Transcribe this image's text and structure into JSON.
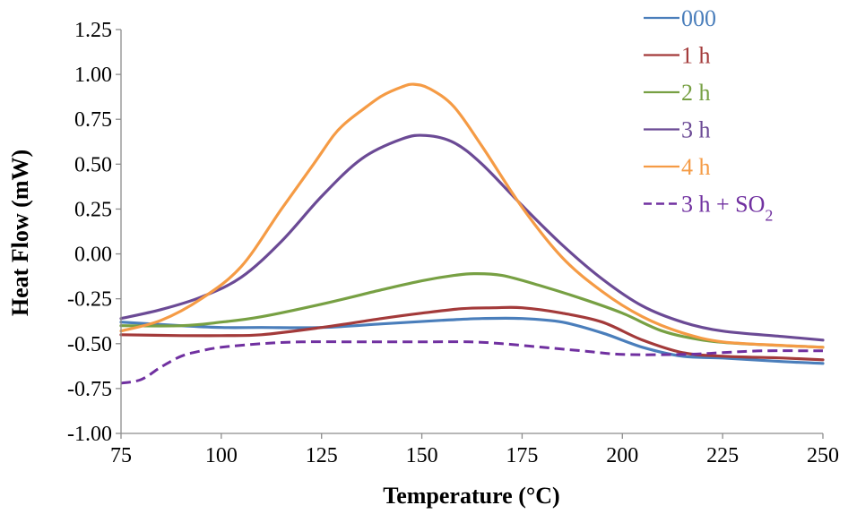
{
  "chart_data": {
    "type": "line",
    "title": "",
    "xlabel": "Temperature (°C)",
    "ylabel": "Heat Flow (mW)",
    "xlim": [
      75,
      250
    ],
    "ylim": [
      -1.0,
      1.25
    ],
    "x_ticks": [
      "75",
      "100",
      "125",
      "150",
      "175",
      "200",
      "225",
      "250"
    ],
    "y_ticks": [
      "-1.00",
      "-0.75",
      "-0.50",
      "-0.25",
      "0.00",
      "0.25",
      "0.50",
      "0.75",
      "1.00",
      "1.25"
    ],
    "grid": false,
    "legend_position": "top-right",
    "series": [
      {
        "name": "000",
        "color": "#4a7ebb",
        "dashed": false,
        "points": [
          [
            75,
            -0.38
          ],
          [
            90,
            -0.4
          ],
          [
            100,
            -0.41
          ],
          [
            110,
            -0.41
          ],
          [
            125,
            -0.41
          ],
          [
            140,
            -0.39
          ],
          [
            155,
            -0.37
          ],
          [
            165,
            -0.36
          ],
          [
            175,
            -0.36
          ],
          [
            185,
            -0.38
          ],
          [
            195,
            -0.44
          ],
          [
            205,
            -0.52
          ],
          [
            215,
            -0.57
          ],
          [
            225,
            -0.58
          ],
          [
            240,
            -0.6
          ],
          [
            250,
            -0.61
          ]
        ]
      },
      {
        "name": "1 h",
        "color": "#a33a3a",
        "dashed": false,
        "points": [
          [
            75,
            -0.45
          ],
          [
            90,
            -0.455
          ],
          [
            100,
            -0.455
          ],
          [
            110,
            -0.45
          ],
          [
            125,
            -0.41
          ],
          [
            140,
            -0.36
          ],
          [
            150,
            -0.33
          ],
          [
            160,
            -0.305
          ],
          [
            168,
            -0.3
          ],
          [
            175,
            -0.3
          ],
          [
            185,
            -0.33
          ],
          [
            195,
            -0.38
          ],
          [
            205,
            -0.48
          ],
          [
            215,
            -0.55
          ],
          [
            225,
            -0.57
          ],
          [
            240,
            -0.58
          ],
          [
            250,
            -0.59
          ]
        ]
      },
      {
        "name": "2 h",
        "color": "#77a043",
        "dashed": false,
        "points": [
          [
            75,
            -0.4
          ],
          [
            90,
            -0.4
          ],
          [
            100,
            -0.38
          ],
          [
            110,
            -0.35
          ],
          [
            125,
            -0.28
          ],
          [
            140,
            -0.2
          ],
          [
            150,
            -0.15
          ],
          [
            158,
            -0.12
          ],
          [
            163,
            -0.11
          ],
          [
            170,
            -0.12
          ],
          [
            180,
            -0.18
          ],
          [
            190,
            -0.25
          ],
          [
            200,
            -0.33
          ],
          [
            210,
            -0.43
          ],
          [
            220,
            -0.48
          ],
          [
            230,
            -0.5
          ],
          [
            250,
            -0.52
          ]
        ]
      },
      {
        "name": "3 h",
        "color": "#6b4a95",
        "dashed": false,
        "points": [
          [
            75,
            -0.36
          ],
          [
            85,
            -0.31
          ],
          [
            95,
            -0.24
          ],
          [
            105,
            -0.13
          ],
          [
            115,
            0.07
          ],
          [
            125,
            0.32
          ],
          [
            135,
            0.53
          ],
          [
            145,
            0.64
          ],
          [
            151,
            0.66
          ],
          [
            158,
            0.62
          ],
          [
            165,
            0.5
          ],
          [
            175,
            0.27
          ],
          [
            185,
            0.05
          ],
          [
            195,
            -0.14
          ],
          [
            205,
            -0.29
          ],
          [
            215,
            -0.38
          ],
          [
            225,
            -0.43
          ],
          [
            240,
            -0.46
          ],
          [
            250,
            -0.48
          ]
        ]
      },
      {
        "name": "4 h",
        "color": "#f59b45",
        "dashed": false,
        "points": [
          [
            75,
            -0.43
          ],
          [
            85,
            -0.37
          ],
          [
            95,
            -0.25
          ],
          [
            105,
            -0.07
          ],
          [
            115,
            0.25
          ],
          [
            123,
            0.5
          ],
          [
            128,
            0.66
          ],
          [
            131,
            0.73
          ],
          [
            135,
            0.8
          ],
          [
            140,
            0.88
          ],
          [
            145,
            0.93
          ],
          [
            148,
            0.945
          ],
          [
            152,
            0.92
          ],
          [
            158,
            0.82
          ],
          [
            165,
            0.6
          ],
          [
            175,
            0.26
          ],
          [
            185,
            -0.02
          ],
          [
            195,
            -0.21
          ],
          [
            205,
            -0.35
          ],
          [
            215,
            -0.44
          ],
          [
            225,
            -0.49
          ],
          [
            240,
            -0.51
          ],
          [
            250,
            -0.52
          ]
        ]
      },
      {
        "name": "3 h + SO2",
        "color": "#7030a0",
        "dashed": true,
        "points": [
          [
            75,
            -0.72
          ],
          [
            80,
            -0.7
          ],
          [
            85,
            -0.63
          ],
          [
            90,
            -0.57
          ],
          [
            95,
            -0.54
          ],
          [
            100,
            -0.52
          ],
          [
            110,
            -0.5
          ],
          [
            120,
            -0.49
          ],
          [
            135,
            -0.49
          ],
          [
            150,
            -0.49
          ],
          [
            162,
            -0.49
          ],
          [
            170,
            -0.5
          ],
          [
            180,
            -0.52
          ],
          [
            190,
            -0.54
          ],
          [
            200,
            -0.56
          ],
          [
            215,
            -0.56
          ],
          [
            225,
            -0.55
          ],
          [
            235,
            -0.54
          ],
          [
            250,
            -0.54
          ]
        ]
      }
    ]
  }
}
